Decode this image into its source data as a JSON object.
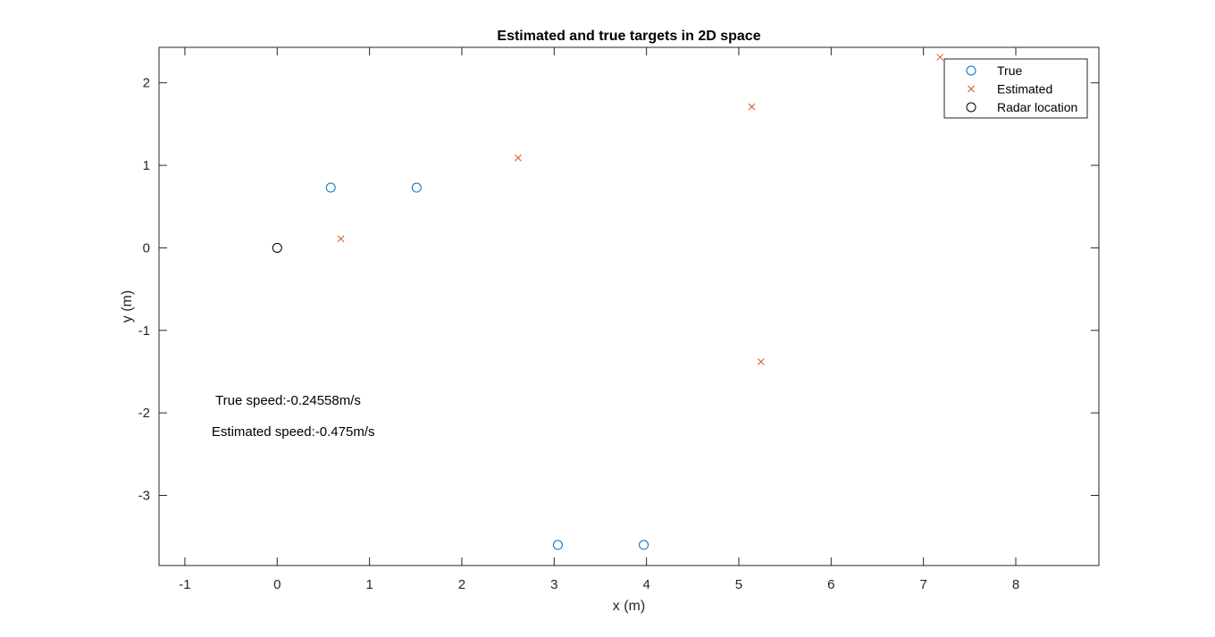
{
  "chart_data": {
    "type": "scatter",
    "title": "Estimated and true targets in 2D space",
    "xlabel": "x (m)",
    "ylabel": "y (m)",
    "xlim": [
      -1.28,
      8.9
    ],
    "ylim": [
      -3.85,
      2.43
    ],
    "xticks": [
      -1,
      0,
      1,
      2,
      3,
      4,
      5,
      6,
      7,
      8
    ],
    "yticks": [
      -3,
      -2,
      -1,
      0,
      1,
      2
    ],
    "grid": false,
    "legend_position": "top-right",
    "series": [
      {
        "name": "True",
        "marker": "circle",
        "color": "#0072BD",
        "points": [
          [
            0.58,
            0.73
          ],
          [
            1.51,
            0.73
          ],
          [
            3.04,
            -3.6
          ],
          [
            3.97,
            -3.6
          ]
        ]
      },
      {
        "name": "Estimated",
        "marker": "x",
        "color": "#D95319",
        "points": [
          [
            0.69,
            0.11
          ],
          [
            2.61,
            1.09
          ],
          [
            5.14,
            1.71
          ],
          [
            5.24,
            -1.38
          ],
          [
            7.18,
            2.31
          ]
        ]
      },
      {
        "name": "Radar location",
        "marker": "circle",
        "color": "#000000",
        "points": [
          [
            0,
            0
          ]
        ]
      }
    ],
    "annotations": [
      {
        "text": "True speed:-0.24558m/s",
        "x": -0.67,
        "y": -1.9
      },
      {
        "text": "Estimated speed:-0.475m/s",
        "x": -0.71,
        "y": -2.28
      }
    ]
  }
}
